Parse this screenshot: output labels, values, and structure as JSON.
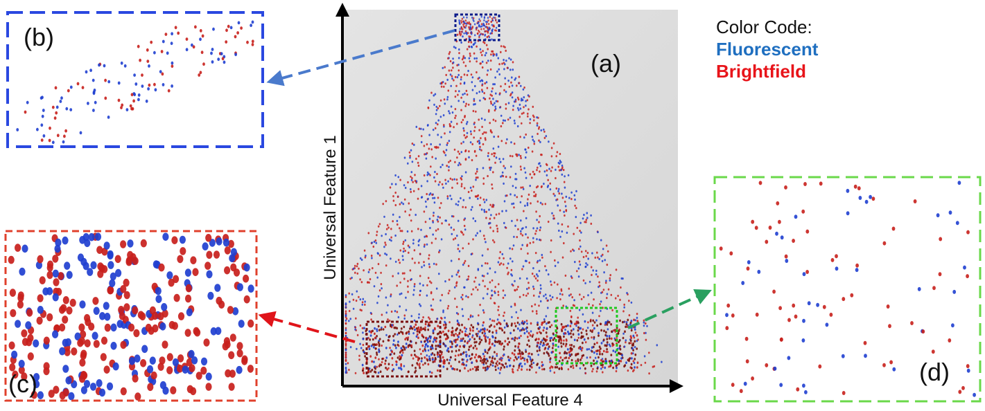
{
  "panels": {
    "a": {
      "label": "(a)"
    },
    "b": {
      "label": "(b)"
    },
    "c": {
      "label": "(c)"
    },
    "d": {
      "label": "(d)"
    }
  },
  "axes": {
    "xlabel": "Universal Feature 4",
    "ylabel": "Universal Feature 1"
  },
  "legend": {
    "title": "Color Code:",
    "entries": [
      {
        "label": "Fluorescent",
        "color": "#1f6fc0"
      },
      {
        "label": "Brightfield",
        "color": "#e8141a"
      }
    ]
  },
  "colors": {
    "fluorescent_point": "#1f3fd0",
    "brightfield_point": "#c8201c",
    "dense_point": "#7a0f0a",
    "plot_background": "#dcdcdc",
    "box_b": "#2a48e0",
    "box_b_roi": "#0a1a8a",
    "box_c": "#e0402c",
    "box_c_roi": "#7a1010",
    "box_d": "#6ad84a",
    "box_d_roi": "#1ec81e",
    "arrow_b": "#4a7acc",
    "arrow_c": "#e0141a",
    "arrow_d": "#2aa060"
  }
}
